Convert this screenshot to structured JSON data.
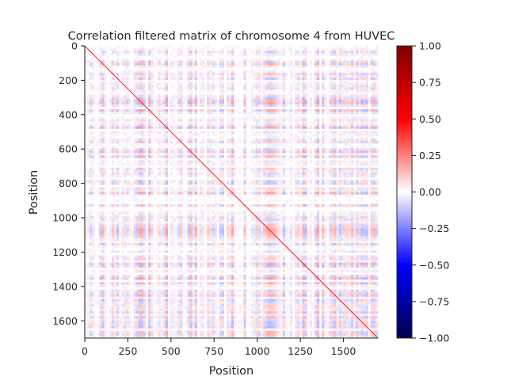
{
  "chart_data": {
    "type": "heatmap",
    "title": "Correlation filtered matrix of chromosome 4 from HUVEC",
    "xlabel": "Position",
    "ylabel": "Position",
    "matrix_size": 1700,
    "xlim": [
      0,
      1700
    ],
    "ylim": [
      1700,
      0
    ],
    "x_ticks": [
      0,
      250,
      500,
      750,
      1000,
      1250,
      1500
    ],
    "x_tick_labels": [
      "0",
      "250",
      "500",
      "750",
      "1000",
      "1250",
      "1500"
    ],
    "y_ticks": [
      0,
      200,
      400,
      600,
      800,
      1000,
      1200,
      1400,
      1600
    ],
    "y_tick_labels": [
      "0",
      "200",
      "400",
      "600",
      "800",
      "1000",
      "1200",
      "1400",
      "1600"
    ],
    "colormap": "seismic",
    "colormap_stops": [
      "#00004d",
      "#0000ff",
      "#ffffff",
      "#ff0000",
      "#800000"
    ],
    "vmin": -1.0,
    "vmax": 1.0,
    "diagonal_value": 1.0,
    "typical_offdiagonal_range": [
      -0.15,
      0.2
    ],
    "colorbar_ticks": [
      1.0,
      0.75,
      0.5,
      0.25,
      0.0,
      -0.25,
      -0.5,
      -0.75,
      -1.0
    ],
    "colorbar_tick_labels": [
      "1.00",
      "0.75",
      "0.50",
      "0.25",
      "0.00",
      "−0.25",
      "−0.50",
      "−0.75",
      "−1.00"
    ],
    "grid": false
  }
}
